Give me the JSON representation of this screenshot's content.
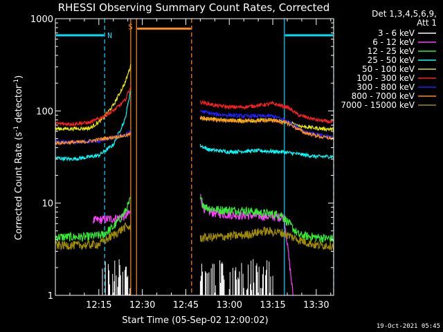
{
  "chart_data": {
    "type": "line",
    "title": "RHESSI Observing Summary Count Rates, Corrected",
    "xlabel": "Start Time (05-Sep-02 12:00:02)",
    "ylabel_main": "Corrected Count Rate (s",
    "ylabel_sup1": "-1",
    "ylabel_mid": " detector",
    "ylabel_sup2": "-1",
    "ylabel_end": ")",
    "yscale": "log",
    "ylim": [
      1,
      1000
    ],
    "xlim_minutes": [
      0,
      96
    ],
    "x_tick_minutes": [
      15,
      30,
      45,
      60,
      75,
      90
    ],
    "x_tick_labels": [
      "12:15",
      "12:30",
      "12:45",
      "13:00",
      "13:15",
      "13:30"
    ],
    "y_tick_values": [
      1,
      10,
      100,
      1000
    ],
    "y_tick_labels": [
      "1",
      "10",
      "100",
      "1000"
    ],
    "legend_header": [
      "Det 1,3,4,5,6,9,",
      "Att 1"
    ],
    "legend_placement": "right",
    "timestamp": "19-Oct-2021 05:45",
    "flags": [
      {
        "label": "N",
        "color": "#00e0ff",
        "level": 660,
        "segments": [
          [
            0,
            17
          ],
          [
            79,
            96
          ]
        ]
      },
      {
        "label": "S",
        "color": "#ff8c1a",
        "level": 780,
        "segments": [
          [
            28,
            47
          ]
        ]
      }
    ],
    "vlines": [
      {
        "minute": 17,
        "color": "#00e0ff",
        "style": "dashed"
      },
      {
        "minute": 26,
        "color": "#ff8c1a",
        "style": "solid"
      },
      {
        "minute": 28,
        "color": "#ff8c1a",
        "style": "solid"
      },
      {
        "minute": 47,
        "color": "#ff8c1a",
        "style": "dashed"
      },
      {
        "minute": 79,
        "color": "#00e0ff",
        "style": "solid"
      },
      {
        "minute": 96,
        "color": "#00e0ff",
        "style": "dashed"
      }
    ],
    "series": [
      {
        "name": "3 - 6 keV",
        "color": "#ffffff",
        "kind": "spiky",
        "base": 1,
        "spike": 2.5,
        "segments": [
          [
            [
              16,
              1
            ],
            [
              26,
              1
            ]
          ],
          [
            [
              50,
              1
            ],
            [
              75,
              1
            ]
          ]
        ]
      },
      {
        "name": "6 - 12 keV",
        "color": "#ff40ff",
        "segments": [
          [
            [
              13,
              6.5
            ],
            [
              20,
              6.8
            ],
            [
              24,
              7.2
            ],
            [
              26,
              8
            ]
          ],
          [
            [
              50,
              12
            ],
            [
              51,
              9
            ],
            [
              53,
              8
            ],
            [
              60,
              7.5
            ],
            [
              70,
              7.3
            ],
            [
              79,
              7
            ],
            [
              82,
              1
            ]
          ]
        ]
      },
      {
        "name": "12 - 25 keV",
        "color": "#33ee33",
        "segments": [
          [
            [
              0,
              4.3
            ],
            [
              5,
              4.3
            ],
            [
              10,
              4.3
            ],
            [
              16,
              4.5
            ],
            [
              20,
              5.5
            ],
            [
              24,
              8
            ],
            [
              26,
              11
            ]
          ],
          [
            [
              50,
              11
            ],
            [
              52,
              9
            ],
            [
              56,
              8.5
            ],
            [
              65,
              8.3
            ],
            [
              72,
              7.8
            ],
            [
              78,
              7.5
            ],
            [
              84,
              4.5
            ],
            [
              92,
              4.2
            ],
            [
              96,
              4.1
            ]
          ]
        ]
      },
      {
        "name": "25 - 50 keV",
        "color": "#00ffff",
        "segments": [
          [
            [
              0,
              31
            ],
            [
              5,
              30
            ],
            [
              10,
              31
            ],
            [
              15,
              33
            ],
            [
              20,
              43
            ],
            [
              24,
              80
            ],
            [
              26,
              170
            ]
          ],
          [
            [
              50,
              42
            ],
            [
              53,
              38
            ],
            [
              60,
              36
            ],
            [
              70,
              37
            ],
            [
              78,
              36
            ],
            [
              84,
              34
            ],
            [
              90,
              32
            ],
            [
              96,
              32
            ]
          ]
        ]
      },
      {
        "name": "50 - 100 keV",
        "color": "#e8e800",
        "segments": [
          [
            [
              0,
              64
            ],
            [
              5,
              64
            ],
            [
              12,
              65
            ],
            [
              16,
              80
            ],
            [
              20,
              115
            ],
            [
              24,
              200
            ],
            [
              26,
              310
            ]
          ],
          [
            [
              50,
              85
            ],
            [
              55,
              80
            ],
            [
              65,
              78
            ],
            [
              75,
              80
            ],
            [
              80,
              75
            ],
            [
              85,
              68
            ],
            [
              90,
              65
            ],
            [
              96,
              63
            ]
          ]
        ]
      },
      {
        "name": "100 - 300 keV",
        "color": "#ff2020",
        "segments": [
          [
            [
              0,
              73
            ],
            [
              5,
              72
            ],
            [
              12,
              75
            ],
            [
              16,
              85
            ],
            [
              20,
              100
            ],
            [
              24,
              130
            ],
            [
              26,
              185
            ]
          ],
          [
            [
              50,
              125
            ],
            [
              55,
              115
            ],
            [
              60,
              110
            ],
            [
              65,
              110
            ],
            [
              70,
              115
            ],
            [
              75,
              120
            ],
            [
              80,
              110
            ],
            [
              84,
              90
            ],
            [
              90,
              80
            ],
            [
              96,
              75
            ]
          ]
        ]
      },
      {
        "name": "300 - 800 keV",
        "color": "#2020ff",
        "segments": [
          [
            [
              0,
              46
            ],
            [
              10,
              46
            ],
            [
              15,
              47
            ],
            [
              20,
              51
            ],
            [
              24,
              55
            ],
            [
              26,
              60
            ]
          ],
          [
            [
              50,
              100
            ],
            [
              55,
              92
            ],
            [
              65,
              88
            ],
            [
              75,
              88
            ],
            [
              80,
              78
            ],
            [
              86,
              60
            ],
            [
              92,
              54
            ],
            [
              96,
              52
            ]
          ]
        ]
      },
      {
        "name": "800 - 7000 keV",
        "color": "#ff8c1a",
        "segments": [
          [
            [
              0,
              45
            ],
            [
              10,
              46
            ],
            [
              15,
              49
            ],
            [
              20,
              52
            ],
            [
              24,
              54
            ],
            [
              26,
              56
            ]
          ],
          [
            [
              50,
              84
            ],
            [
              55,
              80
            ],
            [
              65,
              78
            ],
            [
              75,
              79
            ],
            [
              80,
              74
            ],
            [
              86,
              58
            ],
            [
              92,
              52
            ],
            [
              96,
              50
            ]
          ]
        ]
      },
      {
        "name": "7000 - 15000 keV",
        "color": "#a08c00",
        "segments": [
          [
            [
              0,
              3.5
            ],
            [
              10,
              3.5
            ],
            [
              15,
              3.6
            ],
            [
              20,
              4.5
            ],
            [
              24,
              5.5
            ],
            [
              26,
              5.5
            ]
          ],
          [
            [
              50,
              4.2
            ],
            [
              55,
              4.3
            ],
            [
              65,
              4.5
            ],
            [
              72,
              5.0
            ],
            [
              78,
              4.8
            ],
            [
              84,
              4.0
            ],
            [
              90,
              3.5
            ],
            [
              96,
              3.5
            ]
          ]
        ]
      }
    ]
  }
}
